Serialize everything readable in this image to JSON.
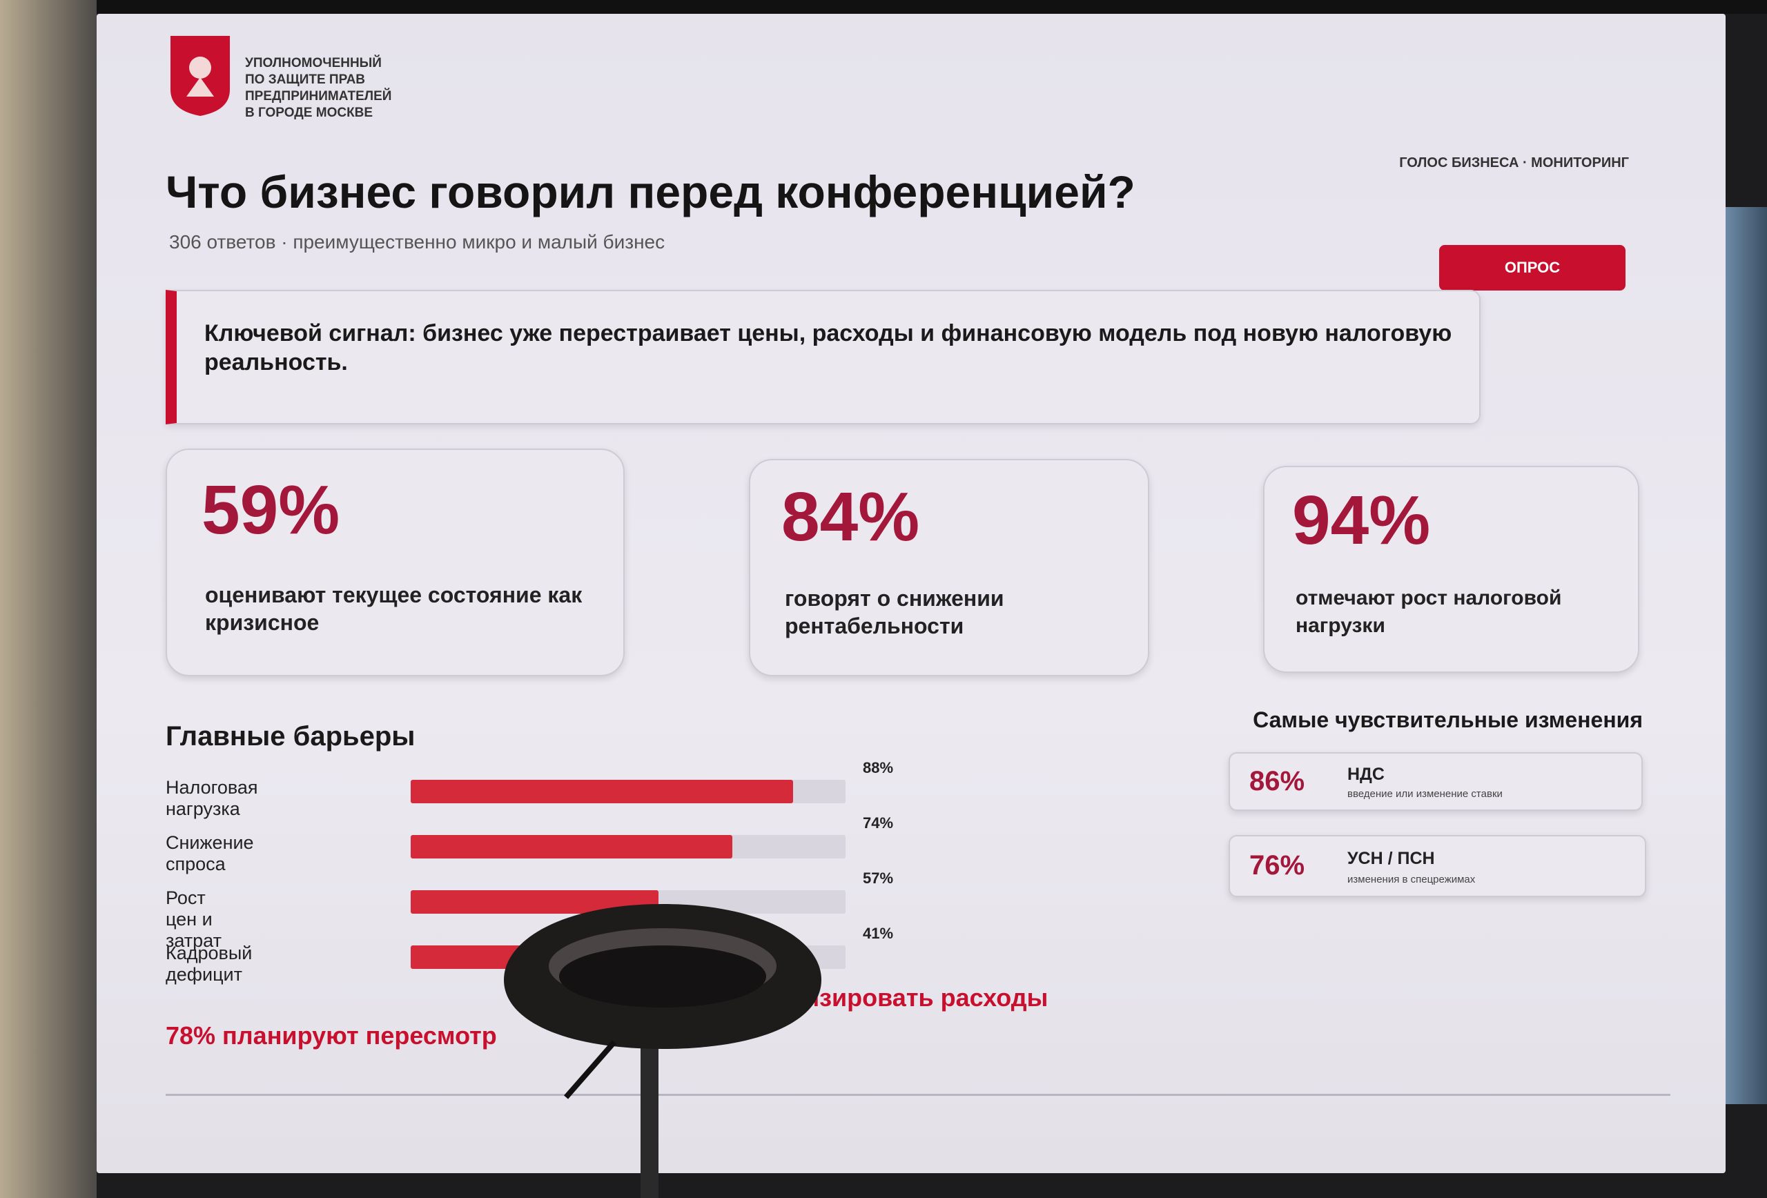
{
  "header": {
    "org_lines": [
      "УПОЛНОМОЧЕННЫЙ",
      "ПО ЗАЩИТЕ ПРАВ",
      "ПРЕДПРИНИМАТЕЛЕЙ",
      "В ГОРОДЕ МОСКВЕ"
    ],
    "section_tag": "ГОЛОС БИЗНЕСА · МОНИТОРИНГ",
    "title": "Что бизнес говорил перед конференцией?",
    "subtitle": "306 ответов · преимущественно микро и малый бизнес",
    "badge": "ОПРОС"
  },
  "key_signal": "Ключевой сигнал: бизнес уже перестраивает цены, расходы и финансовую модель под новую налоговую реальность.",
  "stats": [
    {
      "value": "59%",
      "text": "оценивают текущее состояние как кризисное"
    },
    {
      "value": "84%",
      "text": "говорят о снижении рентабельности"
    },
    {
      "value": "94%",
      "text": "отмечают рост налоговой нагрузки"
    }
  ],
  "chart_data": {
    "type": "bar",
    "orientation": "horizontal",
    "title": "Главные барьеры",
    "categories": [
      "Налоговая нагрузка",
      "Снижение спроса",
      "Рост цен и затрат",
      "Кадровый дефицит"
    ],
    "values": [
      88,
      74,
      57,
      41
    ],
    "value_labels": [
      "88%",
      "74%",
      "57%",
      "41%"
    ],
    "xlim": [
      0,
      100
    ],
    "color": "#d42a3a",
    "track_color": "#d8d5de"
  },
  "changes": {
    "title": "Самые чувствительные изменения",
    "items": [
      {
        "value": "86%",
        "name": "НДС",
        "note": "введение или изменение ставки"
      },
      {
        "value": "76%",
        "name": "УСН / ПСН",
        "note": "изменения в спецрежимах"
      }
    ]
  },
  "footer_fragments": [
    "78% планируют пересмотр",
    "изировать расходы"
  ]
}
